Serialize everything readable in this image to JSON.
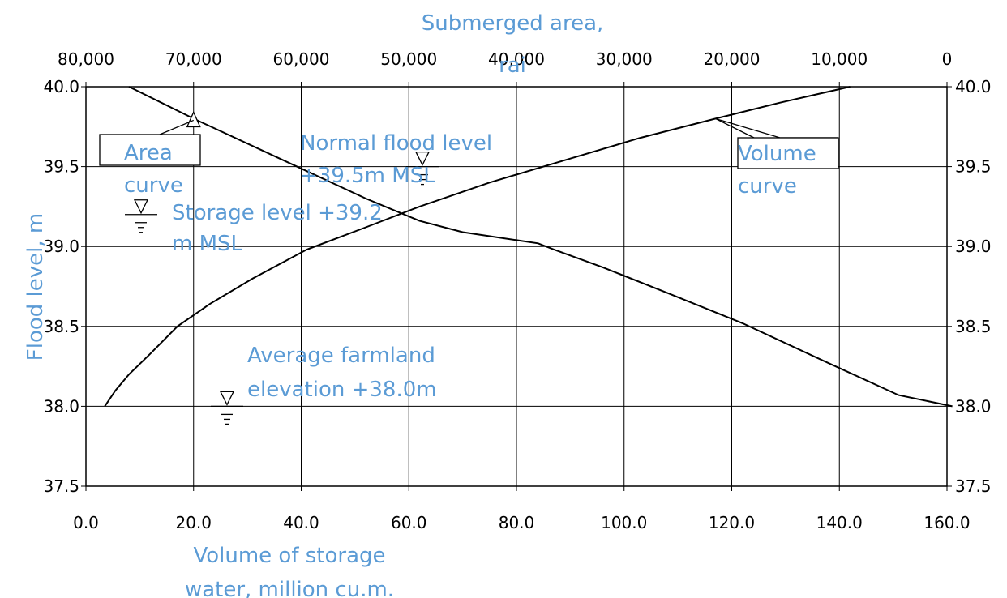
{
  "chart_data": {
    "type": "line",
    "title": "",
    "top_axis": {
      "label_lines": [
        "Submerged area,",
        "rai"
      ],
      "ticks": [
        80000,
        70000,
        60000,
        50000,
        40000,
        30000,
        20000,
        10000,
        0
      ],
      "tick_labels": [
        "80,000",
        "70,000",
        "60,000",
        "50,000",
        "40,000",
        "30,000",
        "20,000",
        "10,000",
        "0"
      ],
      "range": [
        80000,
        0
      ]
    },
    "bottom_axis": {
      "label_lines": [
        "Volume of storage",
        "water, million cu.m."
      ],
      "ticks": [
        0,
        20,
        40,
        60,
        80,
        100,
        120,
        140,
        160
      ],
      "tick_labels": [
        "0.0",
        "20.0",
        "40.0",
        "60.0",
        "80.0",
        "100.0",
        "120.0",
        "140.0",
        "160.0"
      ],
      "range": [
        0,
        160
      ]
    },
    "y_axis": {
      "label": "Flood level, m",
      "ticks": [
        37.5,
        38.0,
        38.5,
        39.0,
        39.5,
        40.0
      ],
      "tick_labels": [
        "37.5",
        "38.0",
        "38.5",
        "39.0",
        "39.5",
        "40.0"
      ],
      "range": [
        37.5,
        40.0
      ]
    },
    "grid": true,
    "series": [
      {
        "name": "Volume curve",
        "x_axis": "bottom",
        "points": [
          [
            3.5,
            38.0
          ],
          [
            5.5,
            38.1
          ],
          [
            8,
            38.2
          ],
          [
            12,
            38.33
          ],
          [
            17,
            38.5
          ],
          [
            23,
            38.64
          ],
          [
            31,
            38.8
          ],
          [
            41,
            38.98
          ],
          [
            52,
            39.12
          ],
          [
            62,
            39.25
          ],
          [
            75,
            39.4
          ],
          [
            90,
            39.55
          ],
          [
            103,
            39.68
          ],
          [
            117,
            39.8
          ],
          [
            129,
            39.9
          ],
          [
            142,
            40.0
          ]
        ]
      },
      {
        "name": "Area curve",
        "x_axis": "top",
        "points": [
          [
            76000,
            40.0
          ],
          [
            70000,
            39.8
          ],
          [
            62000,
            39.55
          ],
          [
            54000,
            39.3
          ],
          [
            49000,
            39.16
          ],
          [
            45000,
            39.09
          ],
          [
            38000,
            39.02
          ],
          [
            36500,
            38.98
          ],
          [
            32000,
            38.87
          ],
          [
            26000,
            38.71
          ],
          [
            19000,
            38.52
          ],
          [
            11000,
            38.27
          ],
          [
            4500,
            38.07
          ],
          [
            -500,
            38.0
          ]
        ]
      }
    ],
    "levels": [
      {
        "label_lines": [
          "Normal flood level",
          "+39.5m MSL"
        ],
        "value": 39.5
      },
      {
        "label_lines": [
          "Storage level +39.2",
          "m MSL"
        ],
        "value": 39.2
      },
      {
        "label_lines": [
          "Average farmland",
          "elevation +38.0m"
        ],
        "value": 38.0
      }
    ],
    "callouts": {
      "area": [
        "Area",
        "curve"
      ],
      "volume": [
        "Volume",
        "curve"
      ]
    }
  }
}
